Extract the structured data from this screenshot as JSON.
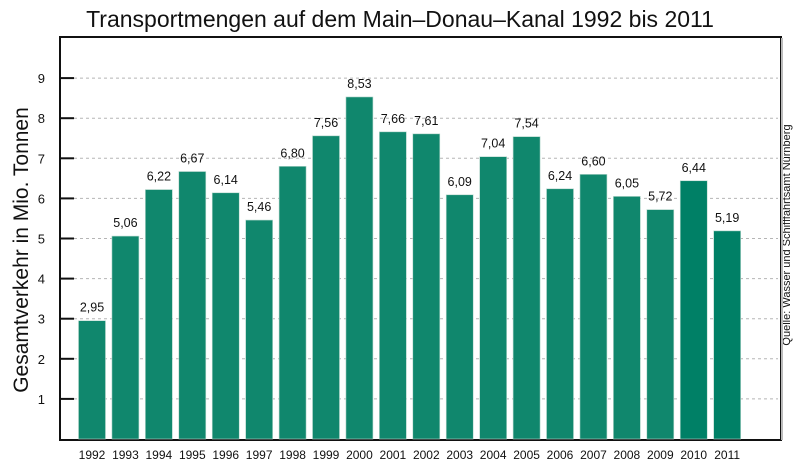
{
  "chart_data": {
    "type": "bar",
    "title": "Transportmengen auf dem Main–Donau–Kanal 1992 bis 2011",
    "xlabel": "",
    "ylabel": "Gesamtverkehr in Mio. Tonnen",
    "source": "Quelle: Wasser und Schifffahrtsamt Nürnberg",
    "categories": [
      "1992",
      "1993",
      "1994",
      "1995",
      "1996",
      "1997",
      "1998",
      "1999",
      "2000",
      "2001",
      "2002",
      "2003",
      "2004",
      "2005",
      "2006",
      "2007",
      "2008",
      "2009",
      "2010",
      "2011"
    ],
    "values": [
      2.95,
      5.06,
      6.22,
      6.67,
      6.14,
      5.46,
      6.8,
      7.56,
      8.53,
      7.66,
      7.61,
      6.09,
      7.04,
      7.54,
      6.24,
      6.6,
      6.05,
      5.72,
      6.44,
      5.19
    ],
    "value_labels": [
      "2,95",
      "5,06",
      "6,22",
      "6,67",
      "6,14",
      "5,46",
      "6,80",
      "7,56",
      "8,53",
      "7,66",
      "7,61",
      "6,09",
      "7,04",
      "7,54",
      "6,24",
      "6,60",
      "6,05",
      "5,72",
      "6,44",
      "5,19"
    ],
    "yticks": [
      1,
      2,
      3,
      4,
      5,
      6,
      7,
      8,
      9
    ],
    "ylim": [
      0,
      10
    ],
    "grid": true,
    "legend": "none",
    "colors": {
      "bar": "#10876d",
      "bar_highlight": "#008066",
      "grid": "#b5b5b5",
      "axis": "#111111"
    },
    "highlight_categories": [
      "2010",
      "2011"
    ]
  }
}
